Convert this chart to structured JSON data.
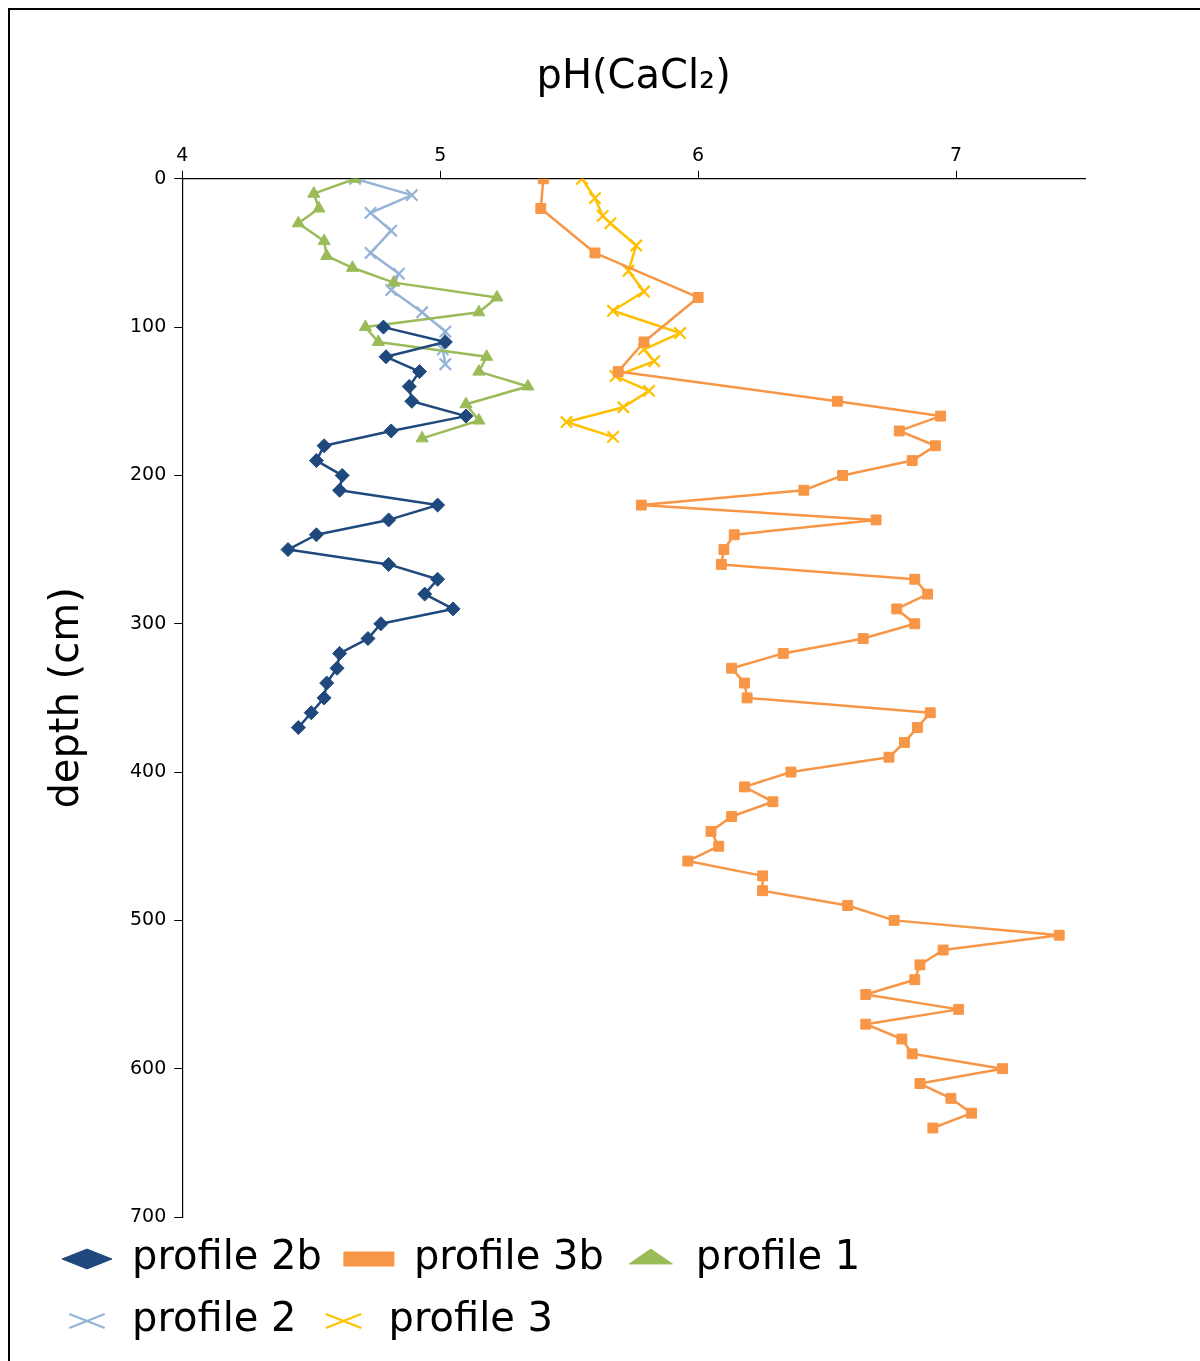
{
  "chart_data": {
    "type": "line",
    "xlabel": "pH(CaCl₂)",
    "ylabel": "depth (cm)",
    "xlim": [
      4,
      7.5
    ],
    "xticks": [
      4,
      5,
      6,
      7
    ],
    "ylim": [
      700,
      0
    ],
    "yticks": [
      0,
      100,
      200,
      300,
      400,
      500,
      600,
      700
    ],
    "grid": false,
    "legend": "bottom",
    "line_style": "solid",
    "series": [
      {
        "name": "profile 2b",
        "color": "#1f497d",
        "marker": "diamond",
        "x": [
          4.78,
          5.02,
          4.79,
          4.92,
          4.88,
          4.89,
          5.1,
          4.81,
          4.55,
          4.52,
          4.62,
          4.61,
          4.99,
          4.8,
          4.52,
          4.41,
          4.8,
          4.99,
          4.94,
          5.05,
          4.77,
          4.72,
          4.61,
          4.6,
          4.56,
          4.55,
          4.5,
          4.45
        ],
        "values": [
          100,
          110,
          120,
          130,
          140,
          150,
          160,
          170,
          180,
          190,
          200,
          210,
          220,
          230,
          240,
          250,
          260,
          270,
          280,
          290,
          300,
          310,
          320,
          330,
          340,
          350,
          360,
          370
        ]
      },
      {
        "name": "profile 3b",
        "color": "#f79646",
        "marker": "square",
        "x": [
          5.4,
          5.39,
          5.6,
          6.0,
          5.79,
          5.69,
          6.54,
          6.94,
          6.78,
          6.92,
          6.83,
          6.56,
          6.41,
          5.78,
          6.69,
          6.14,
          6.1,
          6.09,
          6.84,
          6.89,
          6.77,
          6.84,
          6.64,
          6.33,
          6.13,
          6.18,
          6.19,
          6.9,
          6.85,
          6.8,
          6.74,
          6.36,
          6.18,
          6.29,
          6.13,
          6.05,
          6.08,
          5.96,
          6.25,
          6.25,
          6.58,
          6.76,
          7.4,
          6.95,
          6.86,
          6.84,
          6.65,
          7.01,
          6.65,
          6.79,
          6.83,
          7.18,
          6.86,
          6.98,
          7.06,
          6.91
        ],
        "values": [
          0,
          20,
          50,
          80,
          110,
          130,
          150,
          160,
          170,
          180,
          190,
          200,
          210,
          220,
          230,
          240,
          250,
          260,
          270,
          280,
          290,
          300,
          310,
          320,
          330,
          340,
          350,
          360,
          370,
          380,
          390,
          400,
          410,
          420,
          430,
          440,
          450,
          460,
          470,
          480,
          490,
          500,
          510,
          520,
          530,
          540,
          550,
          560,
          570,
          580,
          590,
          600,
          610,
          620,
          630,
          640
        ]
      },
      {
        "name": "profile 1",
        "color": "#9bbb59",
        "marker": "triangle",
        "x": [
          4.67,
          4.51,
          4.53,
          4.45,
          4.55,
          4.56,
          4.66,
          4.82,
          5.22,
          5.15,
          4.71,
          4.76,
          5.18,
          5.15,
          5.34,
          5.1,
          5.15,
          4.93
        ],
        "values": [
          0,
          10,
          20,
          30,
          42,
          52,
          60,
          70,
          80,
          90,
          100,
          110,
          120,
          130,
          140,
          152,
          163,
          175
        ]
      },
      {
        "name": "profile 2",
        "color": "#95b3d7",
        "marker": "cross",
        "x": [
          4.67,
          4.89,
          4.73,
          4.81,
          4.73,
          4.84,
          4.81,
          4.93,
          5.02,
          5.01,
          5.02
        ],
        "values": [
          0,
          11,
          23,
          35,
          50,
          64,
          75,
          90,
          103,
          115,
          125
        ]
      },
      {
        "name": "profile 3",
        "color": "#ffc000",
        "marker": "cross",
        "x": [
          5.55,
          5.6,
          5.63,
          5.66,
          5.76,
          5.73,
          5.79,
          5.67,
          5.93,
          5.79,
          5.83,
          5.68,
          5.81,
          5.71,
          5.49,
          5.67
        ],
        "values": [
          0,
          13,
          25,
          30,
          45,
          62,
          76,
          89,
          104,
          115,
          123,
          133,
          143,
          154,
          164,
          174
        ]
      }
    ]
  }
}
